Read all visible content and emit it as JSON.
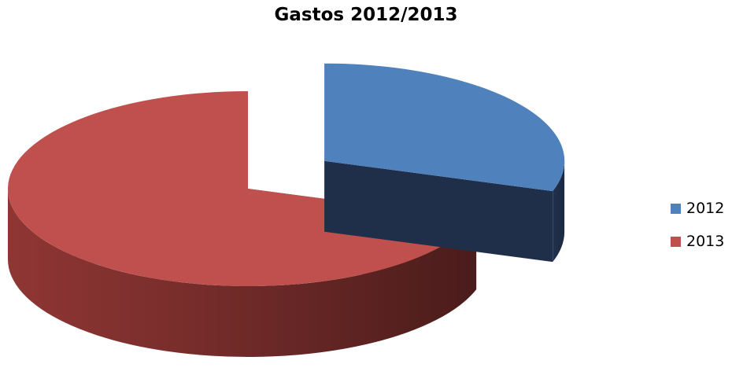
{
  "chart_data": {
    "type": "pie",
    "title": "Gastos 2012/2013",
    "categories": [
      "2012",
      "2013"
    ],
    "values": [
      30,
      70
    ],
    "colors": [
      "#4f81bd",
      "#c0504d"
    ],
    "exploded": [
      true,
      false
    ],
    "legend": "right"
  }
}
